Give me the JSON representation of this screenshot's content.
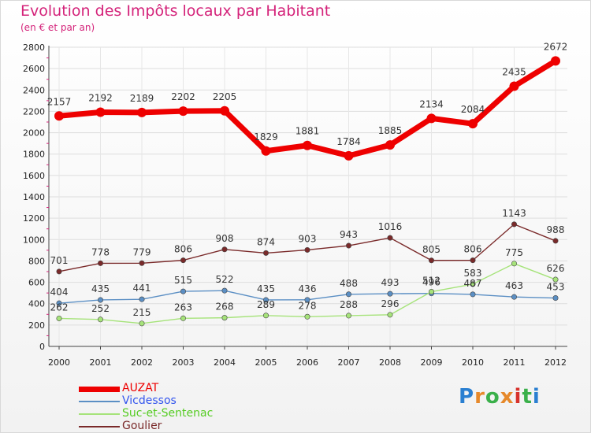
{
  "title": "Evolution des Impôts locaux par Habitant",
  "subtitle": "(en € et par an)",
  "logo": {
    "letters": [
      "P",
      "r",
      "o",
      "x",
      "i",
      "t",
      "i"
    ],
    "colors": [
      "#2a7fd1",
      "#e6892b",
      "#3ab04a",
      "#e6892b",
      "#d7322c",
      "#3ab04a",
      "#2a7fd1"
    ]
  },
  "chart_data": {
    "type": "line",
    "x": [
      "2000",
      "2001",
      "2002",
      "2003",
      "2004",
      "2005",
      "2006",
      "2007",
      "2008",
      "2009",
      "2010",
      "2011",
      "2012"
    ],
    "ylim": [
      0,
      2800
    ],
    "yticks": [
      0,
      200,
      400,
      600,
      800,
      1000,
      1200,
      1400,
      1600,
      1800,
      2000,
      2200,
      2400,
      2600,
      2800
    ],
    "grid": true,
    "series": [
      {
        "name": "AUZAT",
        "color": "#ee0000",
        "legend_color": "#ee0000",
        "values": [
          2157,
          2192,
          2189,
          2202,
          2205,
          1829,
          1881,
          1784,
          1885,
          2134,
          2084,
          2435,
          2672
        ]
      },
      {
        "name": "Vicdessos",
        "color": "#5b8fc4",
        "legend_color": "#3355ee",
        "values": [
          404,
          435,
          441,
          515,
          522,
          435,
          436,
          488,
          493,
          496,
          487,
          463,
          453
        ]
      },
      {
        "name": "Suc-et-Sentenac",
        "color": "#a6e37a",
        "legend_color": "#55cc22",
        "values": [
          262,
          252,
          215,
          263,
          268,
          289,
          278,
          288,
          296,
          512,
          583,
          775,
          626
        ]
      },
      {
        "name": "Goulier",
        "color": "#7a2a2a",
        "legend_color": "#7a2a2a",
        "values": [
          701,
          778,
          779,
          806,
          908,
          874,
          903,
          943,
          1016,
          805,
          806,
          1143,
          988
        ]
      }
    ],
    "data_labels": [
      [
        "2157",
        "2192",
        "2189",
        "2202",
        "2205",
        "1829",
        "1881",
        "1784",
        "1885",
        "2134",
        "2084",
        "2435",
        "2672"
      ],
      [
        "404",
        "435",
        "441",
        "515",
        "522",
        "435",
        "436",
        "488",
        "493",
        "496",
        "487",
        "463",
        "453"
      ],
      [
        "262",
        "252",
        "215",
        "263",
        "268",
        "289",
        "278",
        "288",
        "296",
        "512",
        "583",
        "775",
        "626"
      ],
      [
        "701",
        "778",
        "779",
        "806",
        "908",
        "874",
        "903",
        "943",
        "1016",
        "805",
        "806",
        "1143",
        "988"
      ]
    ]
  }
}
